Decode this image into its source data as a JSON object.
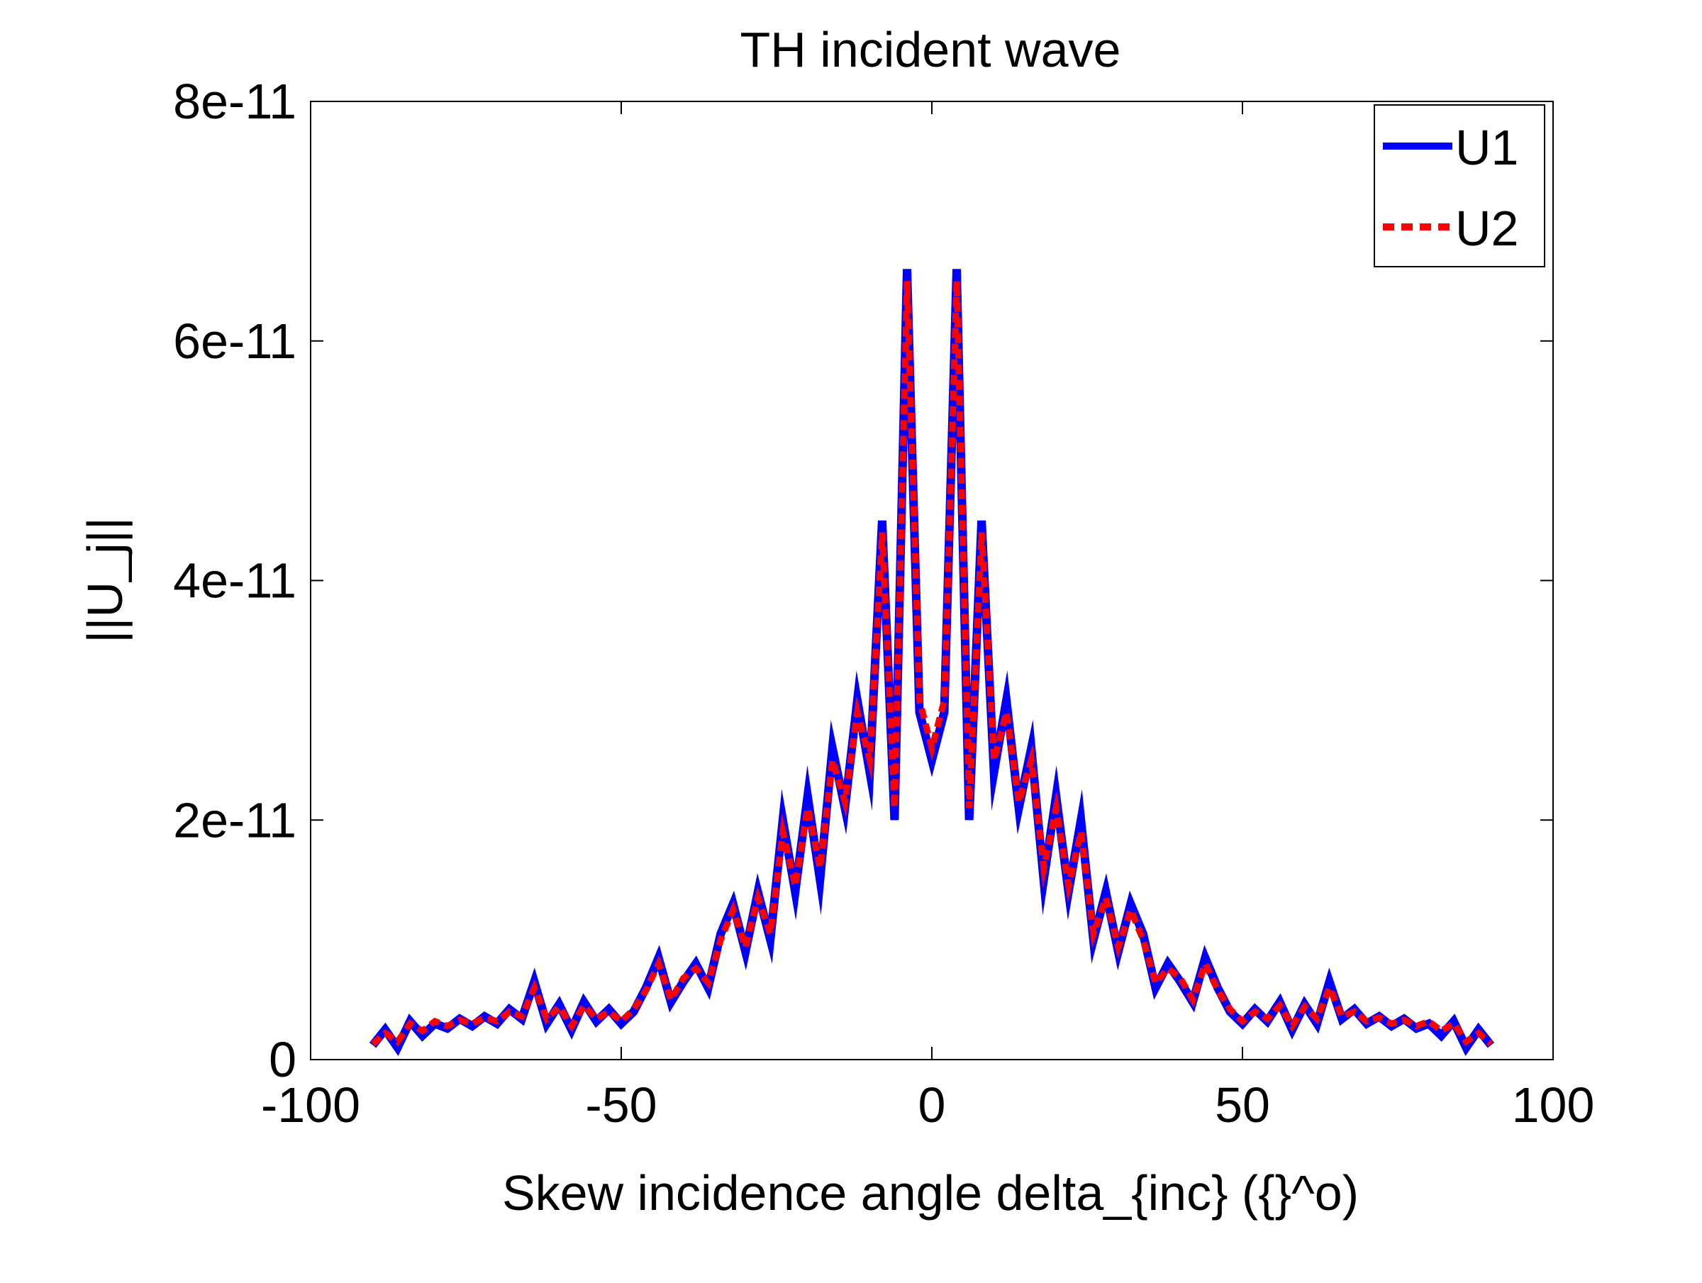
{
  "chart_data": {
    "type": "line",
    "title": "TH incident wave",
    "xlabel": "Skew incidence angle delta_{inc} ({}^o)",
    "ylabel": "||U_j||",
    "xlim": [
      -100,
      100
    ],
    "ylim": [
      0,
      8e-11
    ],
    "xticks": [
      -100,
      -50,
      0,
      50,
      100
    ],
    "xtick_labels": [
      "-100",
      "-50",
      "0",
      "50",
      "100"
    ],
    "yticks": [
      0,
      2e-11,
      4e-11,
      6e-11,
      8e-11
    ],
    "ytick_labels": [
      "0",
      "2e-11",
      "4e-11",
      "6e-11",
      "8e-11"
    ],
    "grid": false,
    "legend_position": "top-right",
    "x": [
      -90,
      -88,
      -86,
      -84,
      -82,
      -80,
      -78,
      -76,
      -74,
      -72,
      -70,
      -68,
      -66,
      -64,
      -62,
      -60,
      -58,
      -56,
      -54,
      -52,
      -50,
      -48,
      -46,
      -44,
      -42,
      -40,
      -38,
      -36,
      -34,
      -32,
      -30,
      -28,
      -26,
      -24,
      -22,
      -20,
      -18,
      -16,
      -14,
      -12,
      -10,
      -8,
      -6,
      -4,
      -2,
      0,
      2,
      4,
      6,
      8,
      10,
      12,
      14,
      16,
      18,
      20,
      22,
      24,
      26,
      28,
      30,
      32,
      34,
      36,
      38,
      40,
      42,
      44,
      46,
      48,
      50,
      52,
      54,
      56,
      58,
      60,
      62,
      64,
      66,
      68,
      70,
      72,
      74,
      76,
      78,
      80,
      82,
      84,
      86,
      88,
      90
    ],
    "series": [
      {
        "name": "U1",
        "color": "#0000ff",
        "style": "solid",
        "values": [
          1.2e-12,
          2.5e-12,
          1e-12,
          3.2e-12,
          2e-12,
          3e-12,
          2.6e-12,
          3.4e-12,
          2.8e-12,
          3.6e-12,
          3e-12,
          4.2e-12,
          3.4e-12,
          6.5e-12,
          3e-12,
          4.6e-12,
          2.5e-12,
          4.8e-12,
          3.2e-12,
          4.2e-12,
          3e-12,
          4e-12,
          6e-12,
          8.5e-12,
          4.8e-12,
          6.5e-12,
          8e-12,
          6e-12,
          1.05e-11,
          1.3e-11,
          9e-12,
          1.4e-11,
          1e-11,
          2e-11,
          1.4e-11,
          2.2e-11,
          1.5e-11,
          2.6e-11,
          2.1e-11,
          3e-11,
          2.4e-11,
          4.5e-11,
          2e-11,
          6.6e-11,
          2.9e-11,
          2.5e-11,
          2.9e-11,
          6.6e-11,
          2e-11,
          4.5e-11,
          2.4e-11,
          3e-11,
          2.1e-11,
          2.6e-11,
          1.5e-11,
          2.2e-11,
          1.4e-11,
          2e-11,
          1e-11,
          1.4e-11,
          9e-12,
          1.3e-11,
          1.05e-11,
          6e-12,
          8e-12,
          6.5e-12,
          4.8e-12,
          8.5e-12,
          6e-12,
          4e-12,
          3e-12,
          4.2e-12,
          3.2e-12,
          4.8e-12,
          2.5e-12,
          4.6e-12,
          3e-12,
          6.5e-12,
          3.4e-12,
          4.2e-12,
          3e-12,
          3.6e-12,
          2.8e-12,
          3.4e-12,
          2.6e-12,
          3e-12,
          2e-12,
          3.2e-12,
          1e-12,
          2.5e-12,
          1.2e-12
        ]
      },
      {
        "name": "U2",
        "color": "#ff0000",
        "style": "dashed",
        "values": [
          1.3e-12,
          2.2e-12,
          1.5e-12,
          3e-12,
          2.4e-12,
          3.2e-12,
          2.8e-12,
          3.3e-12,
          3e-12,
          3.5e-12,
          3.2e-12,
          4e-12,
          3.6e-12,
          6e-12,
          3.4e-12,
          4.4e-12,
          2.8e-12,
          4.5e-12,
          3.4e-12,
          4e-12,
          3.2e-12,
          4.2e-12,
          5.8e-12,
          8e-12,
          5e-12,
          6.8e-12,
          7.6e-12,
          6.4e-12,
          1e-11,
          1.25e-11,
          9.4e-12,
          1.35e-11,
          1.05e-11,
          1.9e-11,
          1.45e-11,
          2.1e-11,
          1.6e-11,
          2.5e-11,
          2.15e-11,
          2.9e-11,
          2.5e-11,
          4.4e-11,
          2.1e-11,
          6.5e-11,
          3e-11,
          2.6e-11,
          3e-11,
          6.5e-11,
          2.1e-11,
          4.4e-11,
          2.5e-11,
          2.9e-11,
          2.15e-11,
          2.5e-11,
          1.6e-11,
          2.1e-11,
          1.45e-11,
          1.9e-11,
          1.05e-11,
          1.35e-11,
          9.4e-12,
          1.25e-11,
          1e-11,
          6.4e-12,
          7.6e-12,
          6.8e-12,
          5e-12,
          8e-12,
          5.8e-12,
          4.2e-12,
          3.2e-12,
          4e-12,
          3.4e-12,
          4.5e-12,
          2.8e-12,
          4.4e-12,
          3.4e-12,
          6e-12,
          3.6e-12,
          4e-12,
          3.2e-12,
          3.5e-12,
          3e-12,
          3.3e-12,
          2.8e-12,
          3.2e-12,
          2.4e-12,
          3e-12,
          1.5e-12,
          2.2e-12,
          1.3e-12
        ]
      }
    ]
  }
}
